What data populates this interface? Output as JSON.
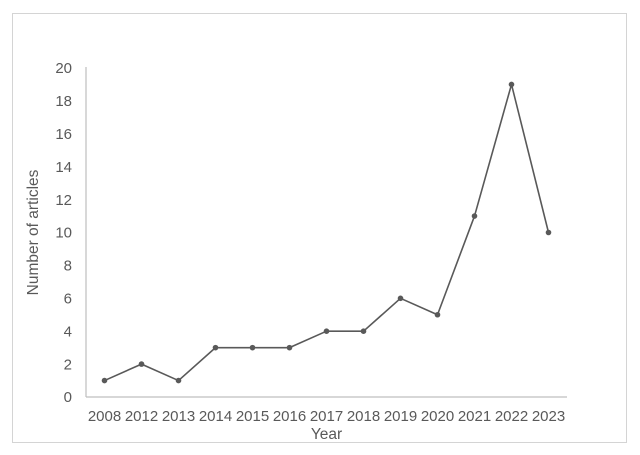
{
  "chart_data": {
    "type": "line",
    "categories": [
      "2008",
      "2012",
      "2013",
      "2014",
      "2015",
      "2016",
      "2017",
      "2018",
      "2019",
      "2020",
      "2021",
      "2022",
      "2023"
    ],
    "values": [
      1,
      2,
      1,
      3,
      3,
      3,
      4,
      4,
      6,
      5,
      11,
      19,
      10
    ],
    "title": "",
    "xlabel": "Year",
    "ylabel": "Number of articles",
    "ylim": [
      0,
      20
    ],
    "ytick_step": 2,
    "yticks": [
      0,
      2,
      4,
      6,
      8,
      10,
      12,
      14,
      16,
      18,
      20
    ],
    "grid": false,
    "legend": "none",
    "line_color": "#595959",
    "marker": "circle",
    "marker_color": "#595959",
    "axis_line_color": "#bfbfbf",
    "tick_label_color": "#595959",
    "frame_border_color": "#d4d4d4"
  }
}
